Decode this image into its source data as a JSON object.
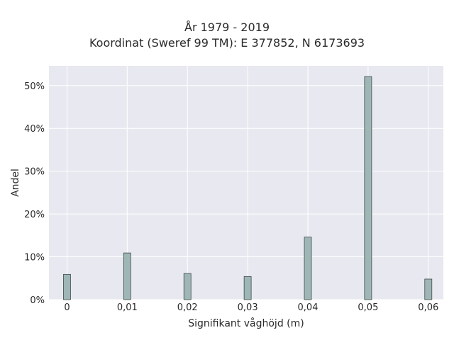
{
  "chart_data": {
    "type": "bar",
    "title_line1": "År 1979 - 2019",
    "title_line2": "Koordinat (Sweref 99 TM): E 377852, N 6173693",
    "xlabel": "Signifikant våghöjd (m)",
    "ylabel": "Andel",
    "x": [
      0,
      0.01,
      0.02,
      0.03,
      0.04,
      0.05,
      0.06
    ],
    "x_tick_labels": [
      "0",
      "0,01",
      "0,02",
      "0,03",
      "0,04",
      "0,05",
      "0,06"
    ],
    "values": [
      0.059,
      0.109,
      0.061,
      0.054,
      0.146,
      0.521,
      0.048
    ],
    "y_ticks": [
      0,
      0.1,
      0.2,
      0.3,
      0.4,
      0.5
    ],
    "y_tick_labels": [
      "0%",
      "10%",
      "20%",
      "30%",
      "40%",
      "50%"
    ],
    "xlim": [
      -0.003,
      0.0625
    ],
    "ylim": [
      0,
      0.546
    ],
    "grid": true,
    "colors": {
      "bar_fill": "#9fb6b6",
      "bar_edge": "#3f4a4a",
      "plot_bg": "#e8e8f0",
      "grid": "#ffffff"
    }
  }
}
